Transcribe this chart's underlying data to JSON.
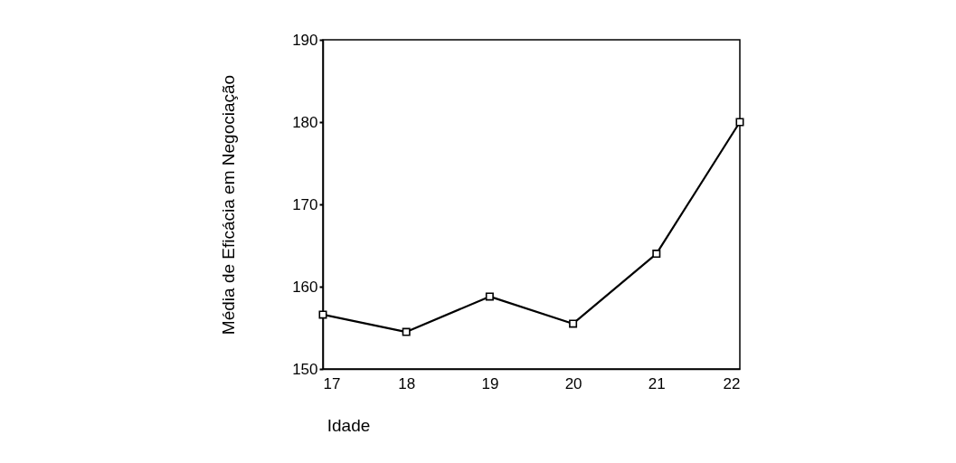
{
  "chart_data": {
    "type": "line",
    "xlabel": "Idade",
    "ylabel": "Média de Eficácia em Negociação",
    "x": [
      17,
      18,
      19,
      20,
      21,
      22
    ],
    "series": [
      {
        "color": "#000000",
        "values": [
          156.6,
          154.5,
          158.8,
          155.5,
          164.0,
          180.0
        ]
      }
    ],
    "xlim": [
      17,
      22
    ],
    "xticks": [
      17,
      18,
      19,
      20,
      21,
      22
    ],
    "ylim": [
      150,
      190
    ],
    "yticks": [
      150,
      160,
      170,
      180,
      190
    ],
    "grid": false,
    "marker": "square",
    "line_style": "solid"
  }
}
